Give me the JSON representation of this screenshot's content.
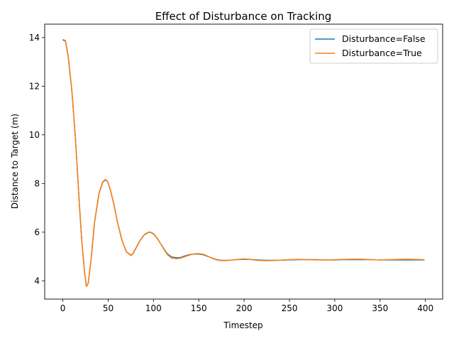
{
  "chart_data": {
    "type": "line",
    "title": "Effect of Disturbance on Tracking",
    "xlabel": "Timestep",
    "ylabel": "Distance to Target (m)",
    "xlim": [
      -20,
      419
    ],
    "ylim": [
      3.25,
      14.55
    ],
    "xticks": [
      0,
      50,
      100,
      150,
      200,
      250,
      300,
      350,
      400
    ],
    "yticks": [
      4,
      6,
      8,
      10,
      12,
      14
    ],
    "grid": false,
    "legend_position": "top-right",
    "series": [
      {
        "name": "Disturbance=False",
        "color": "#1f77b4",
        "x": [
          0,
          3,
          6,
          10,
          14,
          18,
          21,
          24,
          26,
          28,
          31,
          35,
          40,
          44,
          47,
          49,
          52,
          56,
          60,
          65,
          70,
          75,
          77,
          80,
          85,
          90,
          95,
          98,
          101,
          105,
          110,
          115,
          120,
          125,
          130,
          135,
          140,
          145,
          150,
          155,
          160,
          165,
          170,
          175,
          180,
          185,
          190,
          200,
          205,
          210,
          220,
          230,
          240,
          250,
          260,
          270,
          280,
          290,
          300,
          310,
          320,
          330,
          340,
          350,
          360,
          370,
          380,
          390,
          399
        ],
        "values": [
          13.9,
          13.85,
          13.2,
          11.8,
          9.8,
          7.3,
          5.6,
          4.35,
          3.78,
          3.9,
          4.8,
          6.4,
          7.6,
          8.05,
          8.15,
          8.1,
          7.8,
          7.2,
          6.45,
          5.7,
          5.2,
          5.05,
          5.1,
          5.3,
          5.65,
          5.9,
          6.0,
          5.98,
          5.9,
          5.7,
          5.4,
          5.12,
          4.98,
          4.95,
          4.96,
          5.03,
          5.08,
          5.1,
          5.1,
          5.07,
          5.0,
          4.93,
          4.87,
          4.84,
          4.84,
          4.85,
          4.87,
          4.88,
          4.88,
          4.87,
          4.85,
          4.84,
          4.85,
          4.86,
          4.87,
          4.87,
          4.87,
          4.86,
          4.86,
          4.87,
          4.87,
          4.87,
          4.87,
          4.86,
          4.86,
          4.86,
          4.86,
          4.86,
          4.86
        ]
      },
      {
        "name": "Disturbance=True",
        "color": "#ff7f0e",
        "x": [
          0,
          3,
          6,
          10,
          14,
          18,
          21,
          24,
          26,
          28,
          31,
          35,
          40,
          44,
          47,
          49,
          52,
          56,
          60,
          65,
          70,
          75,
          77,
          80,
          85,
          90,
          95,
          98,
          101,
          105,
          110,
          115,
          120,
          125,
          130,
          135,
          140,
          145,
          150,
          155,
          160,
          165,
          170,
          175,
          180,
          185,
          190,
          200,
          205,
          210,
          220,
          230,
          240,
          250,
          260,
          270,
          280,
          290,
          300,
          310,
          320,
          330,
          340,
          350,
          360,
          370,
          380,
          390,
          399
        ],
        "values": [
          13.93,
          13.87,
          13.22,
          11.82,
          9.82,
          7.32,
          5.62,
          4.36,
          3.77,
          3.89,
          4.81,
          6.42,
          7.62,
          8.07,
          8.17,
          8.11,
          7.81,
          7.21,
          6.46,
          5.71,
          5.19,
          5.04,
          5.09,
          5.29,
          5.64,
          5.91,
          6.01,
          5.99,
          5.91,
          5.71,
          5.39,
          5.09,
          4.94,
          4.91,
          4.93,
          5.0,
          5.06,
          5.11,
          5.12,
          5.09,
          5.01,
          4.92,
          4.86,
          4.83,
          4.83,
          4.85,
          4.87,
          4.9,
          4.89,
          4.86,
          4.83,
          4.83,
          4.85,
          4.87,
          4.88,
          4.87,
          4.86,
          4.86,
          4.87,
          4.88,
          4.89,
          4.89,
          4.87,
          4.86,
          4.87,
          4.88,
          4.89,
          4.88,
          4.87
        ]
      }
    ]
  }
}
